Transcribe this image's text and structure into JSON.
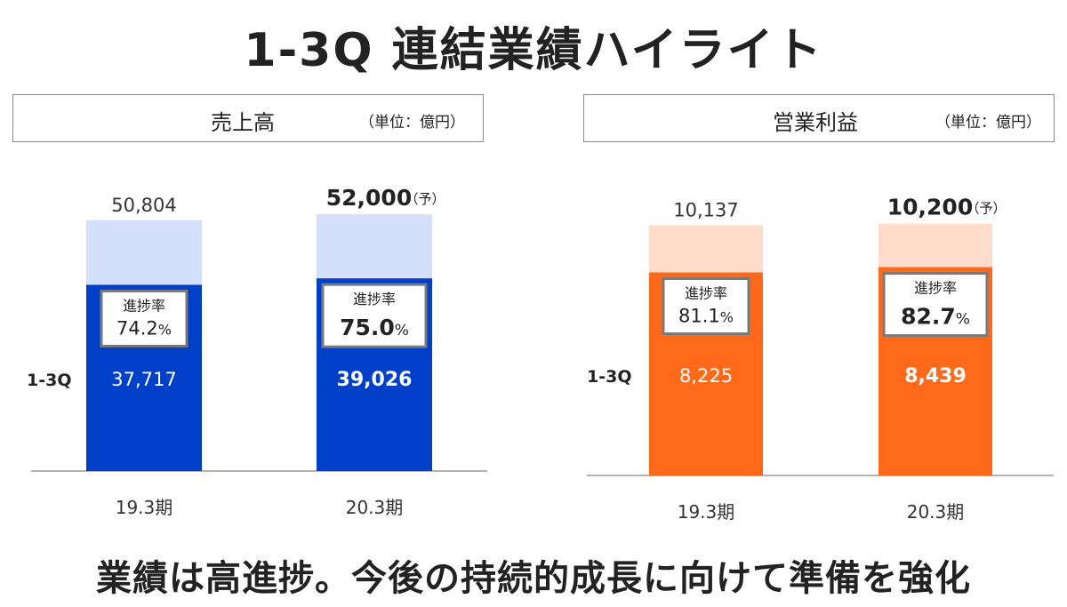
{
  "title": "1-3Q 連結業績ハイライト",
  "footer": "業績は高進捗。今後の持続的成長に向けて準備を強化",
  "panels": [
    {
      "title": "売上高",
      "unit": "（単位：億円）"
    },
    {
      "title": "営業利益",
      "unit": "（単位：億円）"
    }
  ],
  "chart_data": [
    {
      "type": "bar",
      "title": "売上高",
      "unit": "（単位：億円）",
      "categories": [
        "19.3期",
        "20.3期"
      ],
      "row_label": "1-3Q",
      "progress_label": "進捗率",
      "forecast_mark": "（予）",
      "series": [
        {
          "name": "1-3Q",
          "values": [
            37717,
            39026
          ],
          "labels": [
            "37,717",
            "39,026"
          ]
        },
        {
          "name": "",
          "values": [
            50804,
            52000
          ],
          "labels": [
            "50,804",
            "52,000"
          ]
        }
      ],
      "progress": [
        {
          "value": "74.2",
          "unit": "%"
        },
        {
          "value": "75.0",
          "unit": "%"
        }
      ],
      "forecast": [
        false,
        true
      ],
      "colors": {
        "actual": "#0040c8",
        "total": "#d4e0fa"
      },
      "ylim": [
        0,
        54000
      ]
    },
    {
      "type": "bar",
      "title": "営業利益",
      "unit": "（単位：億円）",
      "categories": [
        "19.3期",
        "20.3期"
      ],
      "row_label": "1-3Q",
      "progress_label": "進捗率",
      "forecast_mark": "（予）",
      "series": [
        {
          "name": "1-3Q",
          "values": [
            8225,
            8439
          ],
          "labels": [
            "8,225",
            "8,439"
          ]
        },
        {
          "name": "",
          "values": [
            10137,
            10200
          ],
          "labels": [
            "10,137",
            "10,200"
          ]
        }
      ],
      "progress": [
        {
          "value": "81.1",
          "unit": "%"
        },
        {
          "value": "82.7",
          "unit": "%"
        }
      ],
      "forecast": [
        false,
        true
      ],
      "colors": {
        "actual": "#ff6a1a",
        "total": "#ffdccb"
      },
      "ylim": [
        0,
        10800
      ]
    }
  ]
}
